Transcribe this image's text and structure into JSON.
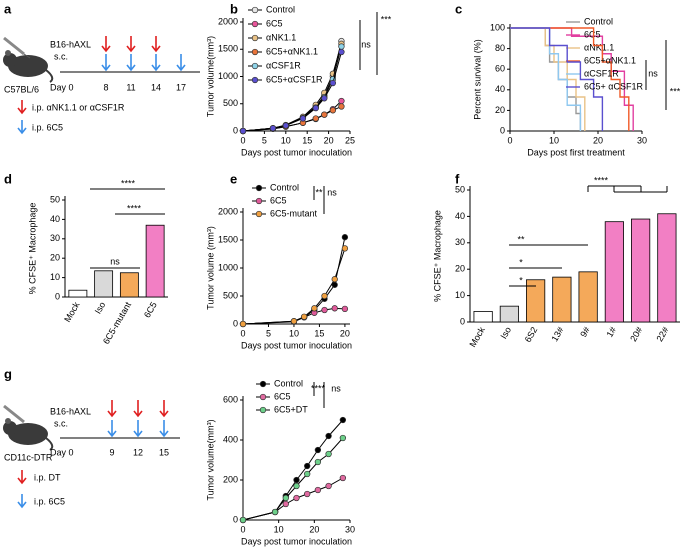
{
  "panels": [
    "a",
    "b",
    "c",
    "d",
    "e",
    "f",
    "g"
  ],
  "schematic_a": {
    "cells": "B16-hAXL",
    "route": "s.c.",
    "strain": "C57BL/6",
    "day0": "Day 0",
    "days": [
      "8",
      "11",
      "14",
      "17"
    ],
    "red_label": "i.p. αNK1.1 or αCSF1R",
    "blue_label": "i.p. 6C5"
  },
  "schematic_g": {
    "cells": "B16-hAXL",
    "route": "s.c.",
    "strain": "CD11c-DTR",
    "day0": "Day 0",
    "days": [
      "9",
      "12",
      "15"
    ],
    "red_label": "i.p. DT",
    "blue_label": "i.p. 6C5"
  },
  "chart_data": [
    {
      "type": "line",
      "xlabel": "Days post  tumor inoculation",
      "ylabel": "Tumor volume(mm³)",
      "x": [
        0,
        7,
        10,
        14,
        17,
        19,
        21,
        23
      ],
      "xlim": [
        0,
        25
      ],
      "xticks": [
        0,
        5,
        10,
        15,
        20,
        25
      ],
      "ylim": [
        0,
        2000
      ],
      "yticks": [
        0,
        500,
        1000,
        1500,
        2000
      ],
      "line_color": "#000000",
      "series": [
        {
          "name": "Control",
          "color": "#e6e6e6",
          "values": [
            0,
            50,
            100,
            250,
            450,
            650,
            1000,
            1650
          ]
        },
        {
          "name": "6C5",
          "color": "#e8559a",
          "values": [
            0,
            40,
            80,
            150,
            220,
            300,
            400,
            550
          ]
        },
        {
          "name": "αNK1.1",
          "color": "#e9c287",
          "values": [
            0,
            50,
            110,
            260,
            480,
            700,
            1050,
            1600
          ]
        },
        {
          "name": "6C5+αNK1.1",
          "color": "#e8743b",
          "values": [
            0,
            40,
            80,
            150,
            230,
            300,
            380,
            450
          ]
        },
        {
          "name": "αCSF1R",
          "color": "#8fd3e8",
          "values": [
            0,
            50,
            100,
            240,
            430,
            620,
            950,
            1550
          ]
        },
        {
          "name": "6C5+αCSF1R",
          "color": "#5a4fcf",
          "values": [
            0,
            50,
            100,
            230,
            420,
            600,
            880,
            1450
          ]
        }
      ],
      "annotations": [
        "ns",
        "***"
      ]
    },
    {
      "type": "line",
      "step": true,
      "xlabel": "Days post first treatment",
      "ylabel": "Percent survival (%)",
      "xlim": [
        0,
        30
      ],
      "xticks": [
        0,
        10,
        20,
        30
      ],
      "ylim": [
        0,
        100
      ],
      "yticks": [
        0,
        20,
        40,
        60,
        80,
        100
      ],
      "series": [
        {
          "name": "Control",
          "color": "#999999",
          "x": [
            0,
            8,
            9,
            11,
            13,
            15,
            16
          ],
          "values": [
            100,
            83,
            67,
            50,
            33,
            17,
            0
          ]
        },
        {
          "name": "6C5",
          "color": "#e23fa0",
          "x": [
            0,
            14,
            21,
            23,
            26,
            28
          ],
          "values": [
            100,
            92,
            75,
            58,
            25,
            0
          ]
        },
        {
          "name": "αNK1.1",
          "color": "#e9c287",
          "x": [
            0,
            8,
            10,
            13,
            15,
            17
          ],
          "values": [
            100,
            83,
            67,
            50,
            33,
            0
          ]
        },
        {
          "name": "6C5+αNK1.1",
          "color": "#f05a28",
          "x": [
            0,
            19,
            21,
            23,
            25,
            27
          ],
          "values": [
            100,
            83,
            67,
            50,
            33,
            0
          ]
        },
        {
          "name": "αCSF1R",
          "color": "#8fc8f0",
          "x": [
            0,
            9,
            11,
            13,
            16
          ],
          "values": [
            100,
            75,
            50,
            25,
            0
          ]
        },
        {
          "name": "6C5+ αCSF1R",
          "color": "#5a4fcf",
          "x": [
            0,
            9,
            13,
            16,
            19,
            21
          ],
          "values": [
            100,
            83,
            67,
            50,
            33,
            0
          ]
        }
      ],
      "annotations": [
        "ns",
        "***"
      ]
    },
    {
      "type": "bar",
      "ylabel": "% CFSE⁺ Macrophage",
      "categories": [
        "Mock",
        "Iso",
        "6C5-mutant",
        "6C5"
      ],
      "values": [
        3.5,
        13.5,
        12.5,
        37
      ],
      "colors": [
        "#ffffff",
        "#d9d9d9",
        "#f4a95a",
        "#f27fc4"
      ],
      "ylim": [
        0,
        50
      ],
      "yticks": [
        0,
        10,
        20,
        30,
        40,
        50
      ],
      "annotations": [
        "****",
        "****",
        "ns"
      ]
    },
    {
      "type": "line",
      "xlabel": "Days post  tumor inoculation",
      "ylabel": "Tumor volume (mm³)",
      "x": [
        0,
        10,
        12,
        14,
        16,
        18,
        20
      ],
      "xlim": [
        0,
        21
      ],
      "xticks": [
        0,
        5,
        10,
        15,
        20
      ],
      "ylim": [
        0,
        2000
      ],
      "yticks": [
        0,
        500,
        1000,
        1500,
        2000
      ],
      "line_color": "#000000",
      "series": [
        {
          "name": "Control",
          "color": "#000000",
          "values": [
            0,
            50,
            120,
            250,
            450,
            700,
            1550
          ]
        },
        {
          "name": "6C5",
          "color": "#e05a9a",
          "values": [
            0,
            40,
            120,
            200,
            250,
            280,
            270
          ]
        },
        {
          "name": "6C5-mutant",
          "color": "#f0a040",
          "values": [
            0,
            50,
            130,
            280,
            500,
            800,
            1350
          ]
        }
      ],
      "annotations": [
        "**",
        "ns"
      ]
    },
    {
      "type": "bar",
      "ylabel": "% CFSE⁺ Macrophage",
      "categories": [
        "Mock",
        "Iso",
        "6S2",
        "13#",
        "9#",
        "1#",
        "20#",
        "22#"
      ],
      "values": [
        4,
        6,
        16,
        17,
        19,
        38,
        39,
        41
      ],
      "colors": [
        "#ffffff",
        "#d9d9d9",
        "#f4a95a",
        "#f4a95a",
        "#f4a95a",
        "#f27fc4",
        "#f27fc4",
        "#f27fc4"
      ],
      "ylim": [
        0,
        50
      ],
      "yticks": [
        0,
        10,
        20,
        30,
        40,
        50
      ],
      "annotations": [
        "**",
        "*",
        "*",
        "****"
      ]
    },
    {
      "type": "line",
      "xlabel": "Days post tumor inoculation",
      "ylabel": "Tumor volume(mm³)",
      "x": [
        0,
        9,
        12,
        15,
        18,
        21,
        24,
        28
      ],
      "xlim": [
        0,
        30
      ],
      "xticks": [
        0,
        10,
        20,
        30
      ],
      "ylim": [
        0,
        600
      ],
      "yticks": [
        0,
        200,
        400,
        600
      ],
      "line_color": "#000000",
      "series": [
        {
          "name": "Control",
          "color": "#000000",
          "values": [
            0,
            40,
            120,
            200,
            270,
            350,
            420,
            500
          ]
        },
        {
          "name": "6C5",
          "color": "#e06aa0",
          "values": [
            0,
            40,
            80,
            110,
            130,
            150,
            170,
            210
          ]
        },
        {
          "name": "6C5+DT",
          "color": "#6dd08a",
          "values": [
            0,
            40,
            110,
            170,
            230,
            290,
            330,
            410
          ]
        }
      ],
      "annotations": [
        "****",
        "ns"
      ]
    }
  ]
}
